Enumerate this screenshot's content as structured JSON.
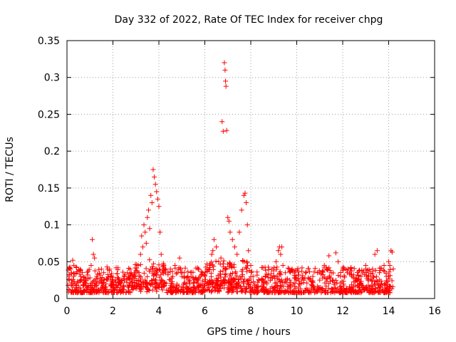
{
  "chart_data": {
    "type": "scatter",
    "title": "Day 332 of 2022, Rate Of TEC Index for receiver chpg",
    "xlabel": "GPS time / hours",
    "ylabel": "ROTI / TECUs",
    "xlim": [
      0,
      16
    ],
    "ylim": [
      0,
      0.35
    ],
    "xticks": [
      0,
      2,
      4,
      6,
      8,
      10,
      12,
      14,
      16
    ],
    "yticks": [
      0,
      0.05,
      0.1,
      0.15,
      0.2,
      0.25,
      0.3,
      0.35
    ],
    "xtick_labels": [
      "0",
      "2",
      "4",
      "6",
      "8",
      "10",
      "12",
      "14",
      "16"
    ],
    "ytick_labels": [
      "0",
      "0.05",
      "0.1",
      "0.15",
      "0.2",
      "0.25",
      "0.3",
      "0.35"
    ],
    "grid": true,
    "marker": "+",
    "color": "#ff0000",
    "series": [
      {
        "name": "ROTI",
        "points": [
          [
            0.05,
            0.018
          ],
          [
            0.1,
            0.025
          ],
          [
            0.15,
            0.04
          ],
          [
            0.2,
            0.035
          ],
          [
            0.25,
            0.052
          ],
          [
            0.3,
            0.045
          ],
          [
            0.35,
            0.02
          ],
          [
            0.4,
            0.015
          ],
          [
            0.5,
            0.022
          ],
          [
            0.6,
            0.03
          ],
          [
            0.7,
            0.018
          ],
          [
            0.8,
            0.025
          ],
          [
            0.9,
            0.032
          ],
          [
            1.0,
            0.028
          ],
          [
            1.05,
            0.045
          ],
          [
            1.1,
            0.08
          ],
          [
            1.15,
            0.06
          ],
          [
            1.2,
            0.055
          ],
          [
            1.3,
            0.03
          ],
          [
            1.4,
            0.022
          ],
          [
            1.5,
            0.025
          ],
          [
            1.6,
            0.035
          ],
          [
            1.7,
            0.02
          ],
          [
            1.8,
            0.028
          ],
          [
            1.9,
            0.03
          ],
          [
            2.0,
            0.022
          ],
          [
            2.1,
            0.025
          ],
          [
            2.2,
            0.028
          ],
          [
            2.3,
            0.02
          ],
          [
            2.4,
            0.025
          ],
          [
            2.5,
            0.03
          ],
          [
            2.6,
            0.022
          ],
          [
            2.7,
            0.028
          ],
          [
            2.8,
            0.035
          ],
          [
            2.9,
            0.03
          ],
          [
            3.0,
            0.038
          ],
          [
            3.1,
            0.045
          ],
          [
            3.2,
            0.06
          ],
          [
            3.25,
            0.085
          ],
          [
            3.3,
            0.07
          ],
          [
            3.35,
            0.1
          ],
          [
            3.4,
            0.09
          ],
          [
            3.45,
            0.075
          ],
          [
            3.5,
            0.11
          ],
          [
            3.55,
            0.12
          ],
          [
            3.6,
            0.095
          ],
          [
            3.65,
            0.14
          ],
          [
            3.7,
            0.13
          ],
          [
            3.75,
            0.175
          ],
          [
            3.8,
            0.165
          ],
          [
            3.85,
            0.155
          ],
          [
            3.9,
            0.145
          ],
          [
            3.95,
            0.135
          ],
          [
            4.0,
            0.125
          ],
          [
            4.05,
            0.09
          ],
          [
            4.1,
            0.06
          ],
          [
            4.2,
            0.045
          ],
          [
            4.3,
            0.04
          ],
          [
            4.4,
            0.035
          ],
          [
            4.5,
            0.04
          ],
          [
            4.6,
            0.03
          ],
          [
            4.7,
            0.045
          ],
          [
            4.8,
            0.035
          ],
          [
            4.9,
            0.055
          ],
          [
            5.0,
            0.03
          ],
          [
            5.1,
            0.035
          ],
          [
            5.2,
            0.028
          ],
          [
            5.3,
            0.025
          ],
          [
            5.4,
            0.03
          ],
          [
            5.5,
            0.022
          ],
          [
            5.6,
            0.028
          ],
          [
            5.7,
            0.025
          ],
          [
            5.8,
            0.03
          ],
          [
            5.9,
            0.035
          ],
          [
            6.0,
            0.03
          ],
          [
            6.1,
            0.04
          ],
          [
            6.2,
            0.045
          ],
          [
            6.3,
            0.06
          ],
          [
            6.35,
            0.065
          ],
          [
            6.4,
            0.08
          ],
          [
            6.5,
            0.07
          ],
          [
            6.6,
            0.05
          ],
          [
            6.7,
            0.055
          ],
          [
            6.75,
            0.24
          ],
          [
            6.8,
            0.227
          ],
          [
            6.85,
            0.32
          ],
          [
            6.88,
            0.31
          ],
          [
            6.9,
            0.295
          ],
          [
            6.92,
            0.288
          ],
          [
            6.95,
            0.228
          ],
          [
            7.0,
            0.11
          ],
          [
            7.05,
            0.105
          ],
          [
            7.1,
            0.09
          ],
          [
            7.2,
            0.08
          ],
          [
            7.3,
            0.07
          ],
          [
            7.4,
            0.06
          ],
          [
            7.5,
            0.09
          ],
          [
            7.6,
            0.12
          ],
          [
            7.7,
            0.14
          ],
          [
            7.75,
            0.143
          ],
          [
            7.8,
            0.13
          ],
          [
            7.85,
            0.1
          ],
          [
            7.9,
            0.065
          ],
          [
            8.0,
            0.045
          ],
          [
            8.1,
            0.03
          ],
          [
            8.3,
            0.022
          ],
          [
            8.5,
            0.025
          ],
          [
            8.7,
            0.02
          ],
          [
            8.9,
            0.028
          ],
          [
            9.0,
            0.03
          ],
          [
            9.1,
            0.05
          ],
          [
            9.2,
            0.065
          ],
          [
            9.25,
            0.07
          ],
          [
            9.3,
            0.06
          ],
          [
            9.35,
            0.07
          ],
          [
            9.4,
            0.045
          ],
          [
            9.5,
            0.035
          ],
          [
            9.7,
            0.025
          ],
          [
            9.9,
            0.028
          ],
          [
            10.1,
            0.02
          ],
          [
            10.3,
            0.025
          ],
          [
            10.5,
            0.028
          ],
          [
            10.7,
            0.03
          ],
          [
            10.9,
            0.035
          ],
          [
            11.0,
            0.025
          ],
          [
            11.2,
            0.045
          ],
          [
            11.3,
            0.04
          ],
          [
            11.4,
            0.058
          ],
          [
            11.5,
            0.035
          ],
          [
            11.7,
            0.062
          ],
          [
            11.8,
            0.05
          ],
          [
            11.9,
            0.03
          ],
          [
            12.0,
            0.04
          ],
          [
            12.2,
            0.035
          ],
          [
            12.4,
            0.03
          ],
          [
            12.6,
            0.025
          ],
          [
            12.8,
            0.03
          ],
          [
            13.0,
            0.045
          ],
          [
            13.1,
            0.025
          ],
          [
            13.3,
            0.04
          ],
          [
            13.4,
            0.06
          ],
          [
            13.5,
            0.065
          ],
          [
            13.6,
            0.035
          ],
          [
            13.8,
            0.045
          ],
          [
            13.9,
            0.03
          ],
          [
            14.0,
            0.05
          ],
          [
            14.05,
            0.045
          ],
          [
            14.1,
            0.065
          ],
          [
            14.15,
            0.063
          ],
          [
            14.2,
            0.04
          ]
        ]
      }
    ]
  }
}
